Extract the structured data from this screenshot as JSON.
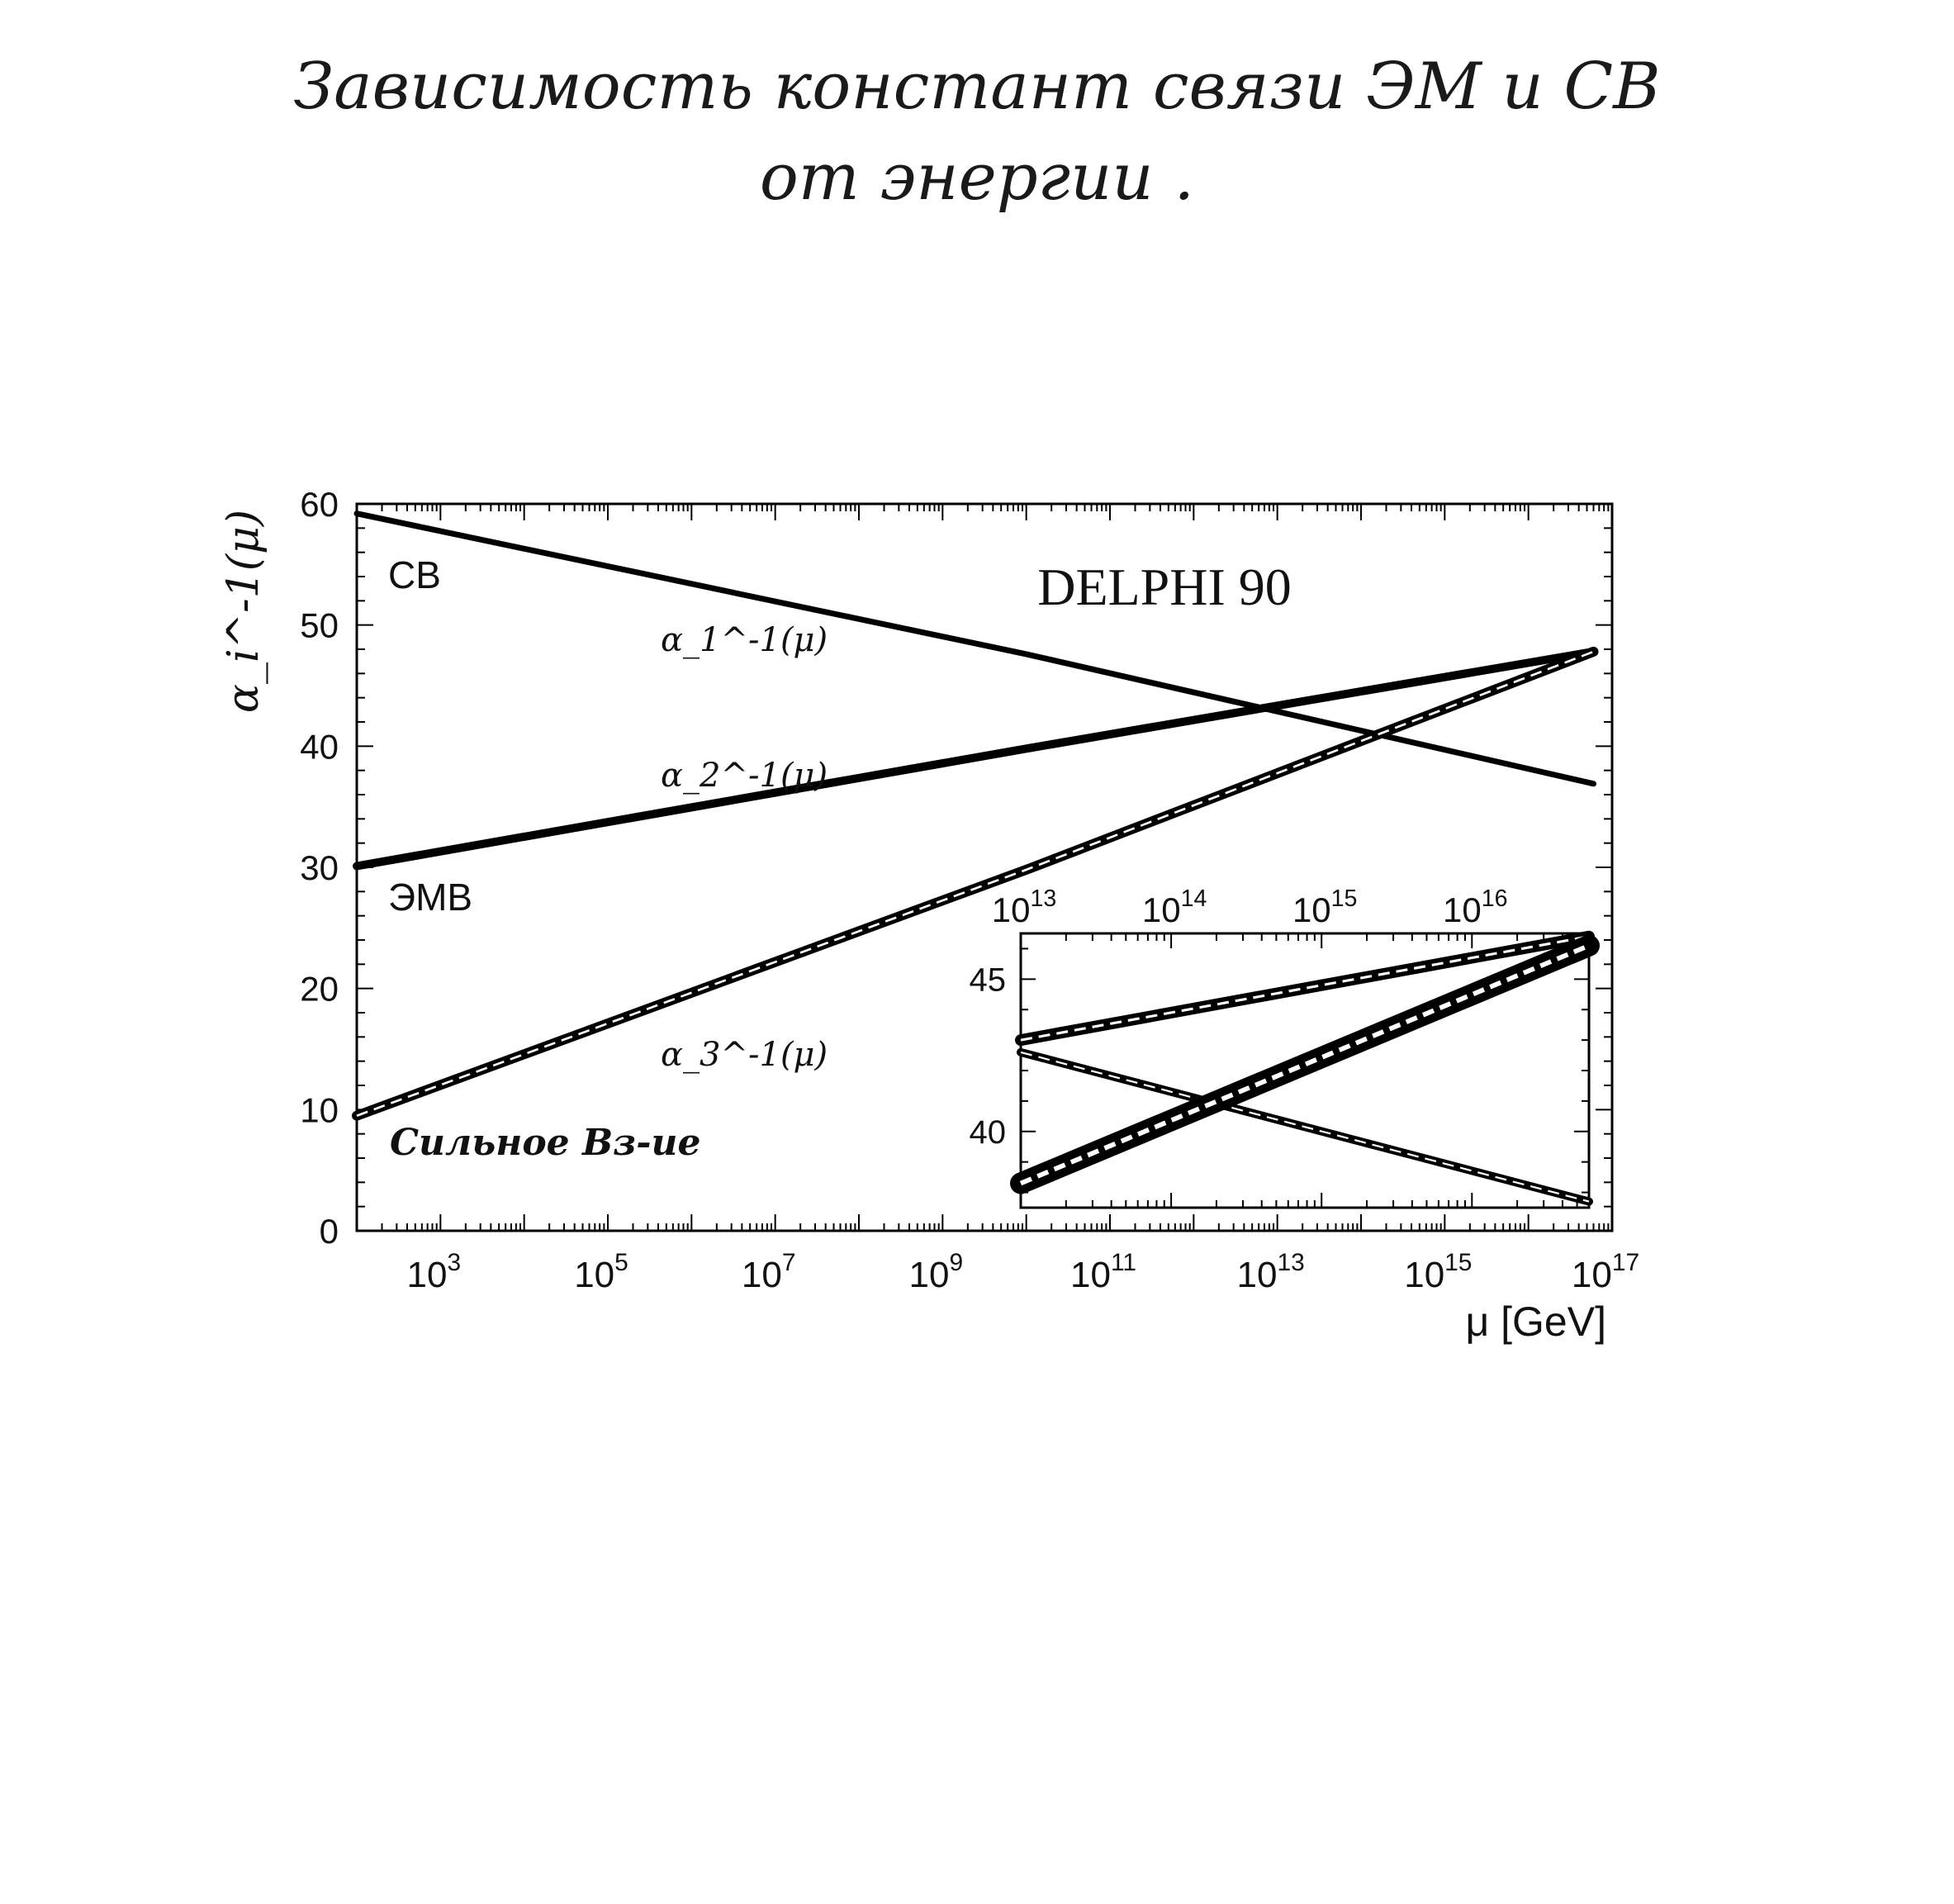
{
  "heading": {
    "line1": "Зависимость констант связи ЭМ и СВ",
    "line2": "от энергии ."
  },
  "chart_data": [
    {
      "type": "line",
      "title": "DELPHI 90",
      "xlabel": "μ [GeV]",
      "ylabel": "α_i^-1(μ)",
      "x_scale": "log",
      "xlim": [
        100,
        1e+17
      ],
      "ylim": [
        0,
        60
      ],
      "x_ticks": [
        "10^3",
        "10^5",
        "10^7",
        "10^9",
        "10^11",
        "10^13",
        "10^15",
        "10^17"
      ],
      "y_ticks": [
        "0",
        "10",
        "20",
        "30",
        "40",
        "50",
        "60"
      ],
      "annotations": [
        "СВ",
        "ЭМВ",
        "Сильное Вз-ие"
      ],
      "series": [
        {
          "name": "α_1^-1(μ)",
          "x": [
            100,
            10000000000.0,
            6e+16
          ],
          "y": [
            59.2,
            47.6,
            36.9
          ]
        },
        {
          "name": "α_2^-1(μ)",
          "x": [
            100,
            10000000000.0,
            6e+16
          ],
          "y": [
            30.1,
            39.8,
            47.8
          ]
        },
        {
          "name": "α_3^-1(μ)",
          "x": [
            100,
            10000000000.0,
            6e+16
          ],
          "y": [
            9.5,
            29.8,
            47.8
          ]
        }
      ]
    },
    {
      "type": "line",
      "title": "",
      "x_scale": "log",
      "xlim": [
        10000000000000.0,
        6e+16
      ],
      "ylim": [
        37.5,
        46.5
      ],
      "x_ticks": [
        "10^13",
        "10^14",
        "10^15",
        "10^16"
      ],
      "y_ticks": [
        "40",
        "45"
      ],
      "series": [
        {
          "x": [
            10000000000000.0,
            6e+16
          ],
          "y": [
            43.0,
            46.4
          ]
        },
        {
          "x": [
            10000000000000.0,
            6e+16
          ],
          "y": [
            42.6,
            37.7
          ]
        },
        {
          "x": [
            10000000000000.0,
            6e+16
          ],
          "y": [
            38.3,
            46.1
          ]
        }
      ]
    }
  ]
}
